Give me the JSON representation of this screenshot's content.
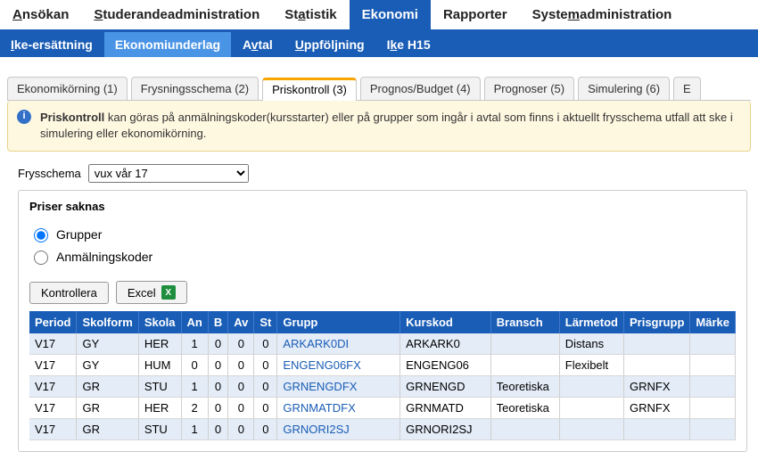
{
  "topnav": {
    "items": [
      {
        "pre": "",
        "ul": "A",
        "post": "nsökan",
        "active": false
      },
      {
        "pre": "",
        "ul": "S",
        "post": "tuderandeadministration",
        "active": false
      },
      {
        "pre": "St",
        "ul": "a",
        "post": "tistik",
        "active": false
      },
      {
        "pre": "",
        "ul": "",
        "post": "Ekonomi",
        "active": true
      },
      {
        "pre": "",
        "ul": "",
        "post": "Rapporter",
        "active": false
      },
      {
        "pre": "Syste",
        "ul": "m",
        "post": "administration",
        "active": false
      }
    ]
  },
  "subnav": {
    "items": [
      {
        "pre": "",
        "ul": "I",
        "post": "ke-ersättning",
        "active": false
      },
      {
        "pre": "",
        "ul": "",
        "post": "Ekonomiunderlag",
        "active": true
      },
      {
        "pre": "A",
        "ul": "v",
        "post": "tal",
        "active": false
      },
      {
        "pre": "",
        "ul": "U",
        "post": "ppföljning",
        "active": false
      },
      {
        "pre": "I",
        "ul": "k",
        "post": "e H15",
        "active": false
      }
    ]
  },
  "tabs": {
    "items": [
      {
        "label": "Ekonomikörning (1)",
        "active": false
      },
      {
        "label": "Frysningsschema (2)",
        "active": false
      },
      {
        "label": "Priskontroll (3)",
        "active": true
      },
      {
        "label": "Prognos/Budget (4)",
        "active": false
      },
      {
        "label": "Prognoser (5)",
        "active": false
      },
      {
        "label": "Simulering (6)",
        "active": false
      }
    ]
  },
  "info": {
    "bold": "Priskontroll",
    "rest": " kan göras på anmälningskoder(kursstarter) eller på grupper som ingår i avtal som finns i aktuellt frysschema utfall att ske i simulering eller ekonomikörning."
  },
  "selector": {
    "label": "Frysschema",
    "selected": "vux vår 17"
  },
  "fieldset": {
    "legend": "Priser saknas",
    "radios": [
      {
        "label": "Grupper",
        "checked": true
      },
      {
        "label": "Anmälningskoder",
        "checked": false
      }
    ],
    "buttons": {
      "kontrollera": "Kontrollera",
      "excel": "Excel"
    }
  },
  "table": {
    "columns": [
      "Period",
      "Skolform",
      "Skola",
      "An",
      "B",
      "Av",
      "St",
      "Grupp",
      "Kurskod",
      "Bransch",
      "Lärmetod",
      "Prisgrupp",
      "Märke"
    ],
    "rows": [
      {
        "period": "V17",
        "skolform": "GY",
        "skola": "HER",
        "an": "1",
        "b": "0",
        "av": "0",
        "st": "0",
        "grupp": "ARKARK0DI",
        "kurskod": "ARKARK0",
        "bransch": "",
        "larmetod": "Distans",
        "prisgrupp": "",
        "marke": ""
      },
      {
        "period": "V17",
        "skolform": "GY",
        "skola": "HUM",
        "an": "0",
        "b": "0",
        "av": "0",
        "st": "0",
        "grupp": "ENGENG06FX",
        "kurskod": "ENGENG06",
        "bransch": "",
        "larmetod": "Flexibelt",
        "prisgrupp": "",
        "marke": ""
      },
      {
        "period": "V17",
        "skolform": "GR",
        "skola": "STU",
        "an": "1",
        "b": "0",
        "av": "0",
        "st": "0",
        "grupp": "GRNENGDFX",
        "kurskod": "GRNENGD",
        "bransch": "Teoretiska",
        "larmetod": "",
        "prisgrupp": "GRNFX",
        "marke": ""
      },
      {
        "period": "V17",
        "skolform": "GR",
        "skola": "HER",
        "an": "2",
        "b": "0",
        "av": "0",
        "st": "0",
        "grupp": "GRNMATDFX",
        "kurskod": "GRNMATD",
        "bransch": "Teoretiska",
        "larmetod": "",
        "prisgrupp": "GRNFX",
        "marke": ""
      },
      {
        "period": "V17",
        "skolform": "GR",
        "skola": "STU",
        "an": "1",
        "b": "0",
        "av": "0",
        "st": "0",
        "grupp": "GRNORI2SJ",
        "kurskod": "GRNORI2SJ",
        "bransch": "",
        "larmetod": "",
        "prisgrupp": "",
        "marke": ""
      }
    ]
  },
  "colors": {
    "primary": "#1a5db6",
    "primary_light": "#4a94e6",
    "tab_active_border": "#f7a600",
    "info_bg": "#fff8e1",
    "info_border": "#e8d28a",
    "row_alt": "#e3ecf7"
  }
}
